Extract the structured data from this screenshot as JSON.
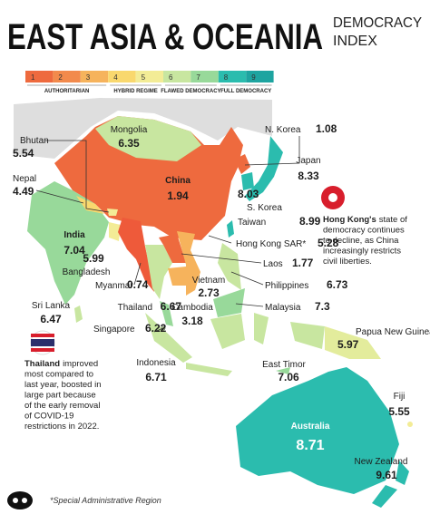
{
  "header": {
    "title": "EAST ASIA & OCEANIA",
    "subtitle": [
      "DEMOCRACY",
      "INDEX"
    ]
  },
  "legend": {
    "scale": [
      1,
      2,
      3,
      4,
      5,
      6,
      7,
      8,
      9
    ],
    "colors": [
      "#ee6a3e",
      "#f28a4c",
      "#f6b35c",
      "#f9d86e",
      "#f3ec96",
      "#c8e6a0",
      "#98d99a",
      "#2bbcae",
      "#1ea4a0"
    ],
    "groups": [
      "AUTHORITARIAN",
      "HYBRID REGIME",
      "FLAWED DEMOCRACY",
      "FULL DEMOCRACY"
    ]
  },
  "countries": [
    {
      "name": "Mongolia",
      "score": 6.35
    },
    {
      "name": "China",
      "score": 1.94
    },
    {
      "name": "N. Korea",
      "score": 1.08
    },
    {
      "name": "Japan",
      "score": 8.33
    },
    {
      "name": "S. Korea",
      "score": 8.03
    },
    {
      "name": "Taiwan",
      "score": 8.99
    },
    {
      "name": "Hong Kong SAR*",
      "score": 5.28
    },
    {
      "name": "Laos",
      "score": 1.77
    },
    {
      "name": "Vietnam",
      "score": 2.73
    },
    {
      "name": "Philippines",
      "score": 6.73
    },
    {
      "name": "Malaysia",
      "score": 7.3
    },
    {
      "name": "Cambodia",
      "score": 3.18
    },
    {
      "name": "Thailand",
      "score": 6.67
    },
    {
      "name": "Myanmar",
      "score": 0.74
    },
    {
      "name": "Bangladesh",
      "score": 5.99
    },
    {
      "name": "Singapore",
      "score": 6.22
    },
    {
      "name": "Sri Lanka",
      "score": 6.47
    },
    {
      "name": "India",
      "score": 7.04
    },
    {
      "name": "Nepal",
      "score": 4.49
    },
    {
      "name": "Bhutan",
      "score": 5.54
    },
    {
      "name": "Papua New Guinea",
      "score": 5.97
    },
    {
      "name": "East Timor",
      "score": 7.06
    },
    {
      "name": "Indonesia",
      "score": 6.71
    },
    {
      "name": "Australia",
      "score": 8.71
    },
    {
      "name": "Fiji",
      "score": 5.55
    },
    {
      "name": "New Zealand",
      "score": 9.61
    }
  ],
  "notes": {
    "hong_kong": {
      "bold": "Hong Kong's",
      "lines": [
        "state of",
        "democracy continues",
        "to decline, as China",
        "increasingly restricts",
        "civil liberties."
      ]
    },
    "thailand": {
      "bold": "Thailand",
      "lines": [
        "improved",
        "most compared to",
        "last year, boosted in",
        "large part because",
        "of the early removal",
        "of COVID-19",
        "restrictions in 2022."
      ]
    }
  },
  "footnote": "*Special Administrative Region"
}
